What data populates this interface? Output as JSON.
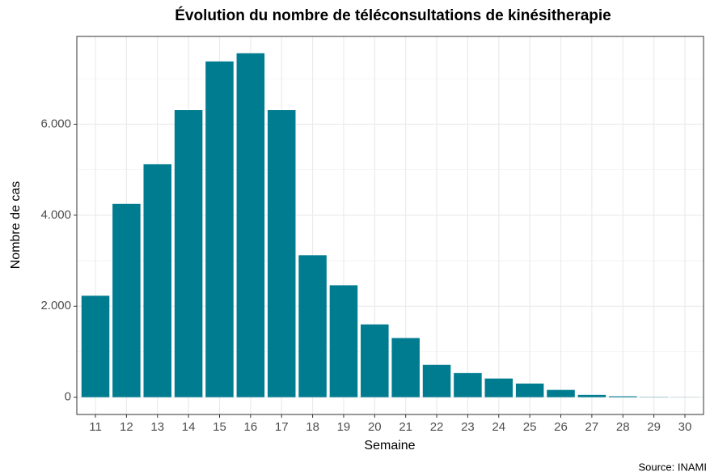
{
  "chart_data": {
    "type": "bar",
    "title": "Évolution du nombre de téléconsultations de kinésitherapie",
    "x_label": "Semaine",
    "y_label": "Nombre de cas",
    "caption": "Source: INAMI",
    "categories": [
      "11",
      "12",
      "13",
      "14",
      "15",
      "16",
      "17",
      "18",
      "19",
      "20",
      "21",
      "22",
      "23",
      "24",
      "25",
      "26",
      "27",
      "28",
      "29",
      "30"
    ],
    "values": [
      2230,
      4250,
      5120,
      6310,
      7380,
      7560,
      6310,
      3120,
      2460,
      1600,
      1300,
      710,
      530,
      410,
      300,
      160,
      50,
      20,
      5,
      2
    ],
    "color": "#007c91",
    "ylim": [
      -380,
      7930
    ],
    "yticks": [
      0,
      {
        "value": 2000,
        "label": "2.000"
      },
      {
        "value": 4000,
        "label": "4.000"
      },
      {
        "value": 6000,
        "label": "6.000"
      }
    ],
    "minor_yticks": [
      1000,
      3000,
      5000,
      7000
    ],
    "grid": true
  }
}
